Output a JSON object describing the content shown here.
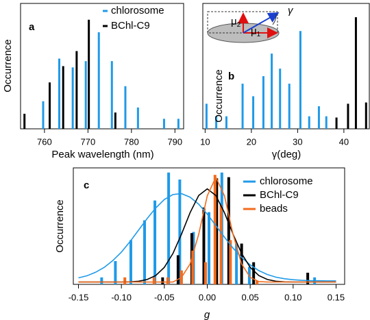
{
  "chart_data": [
    {
      "type": "bar",
      "panel_label": "a",
      "x_label": "Peak wavelength (nm)",
      "y_label": "Occurrence",
      "xlim": [
        754.5,
        792
      ],
      "xticks": [
        760,
        770,
        780,
        790
      ],
      "ylim": [
        0,
        10
      ],
      "legend": "upper right",
      "series": [
        {
          "name": "chlorosome",
          "color": "#1f9ae8",
          "x": [
            759.7,
            763.4,
            766.5,
            769.5,
            772.5,
            775.5,
            778.6,
            781.5,
            787.5,
            790.8
          ],
          "values": [
            2.2,
            5.6,
            4.9,
            5.4,
            7.7,
            5.4,
            3.4,
            1.7,
            0.8,
            0.8
          ]
        },
        {
          "name": "BChl-C9",
          "color": "#000000",
          "x": [
            755.4,
            761.2,
            764.3,
            767.4,
            770.2,
            776.3
          ],
          "values": [
            1.2,
            3.7,
            5.0,
            6.2,
            8.7,
            1.3
          ]
        }
      ]
    },
    {
      "type": "bar",
      "panel_label": "b",
      "x_label": "γ(deg)",
      "y_label": "Occurrence",
      "xlim": [
        9.5,
        45.5
      ],
      "xticks": [
        10,
        20,
        30,
        40
      ],
      "ylim": [
        0,
        10
      ],
      "inset_labels": [
        {
          "text": "μ",
          "sub": "2"
        },
        {
          "text": "μ",
          "sub": "1"
        },
        {
          "text": "γ"
        }
      ],
      "series": [
        {
          "color": "#1f9ae8",
          "x": [
            10.3,
            12.4,
            14.6,
            18.1,
            20.4,
            22.6,
            24.4,
            26.2,
            28.2,
            30.6,
            32.5,
            34.6,
            36.2
          ],
          "values": [
            2.0,
            1.0,
            1.0,
            3.6,
            2.6,
            4.2,
            6.0,
            4.8,
            3.6,
            7.8,
            1.0,
            1.8,
            1.0
          ]
        },
        {
          "color": "#000000",
          "x": [
            38.4,
            40.9,
            42.6,
            44.8
          ],
          "values": [
            0.9,
            2.0,
            8.9,
            2.1
          ]
        }
      ]
    },
    {
      "type": "bar",
      "panel_label": "c",
      "x_label": "g",
      "y_label": "Occurrence",
      "xlim": [
        -0.156,
        0.16
      ],
      "xticks": [
        -0.15,
        {
          "value": -0.1,
          "label": "-0.10"
        },
        -0.05,
        {
          "value": 0,
          "label": "0.00"
        },
        0.05,
        {
          "value": 0.1,
          "label": "0.10"
        },
        0.15
      ],
      "ylim": [
        0,
        10
      ],
      "legend": "upper right",
      "fit_x": [
        -0.15,
        -0.14,
        -0.13,
        -0.12,
        -0.11,
        -0.1,
        -0.09,
        -0.08,
        -0.07,
        -0.06,
        -0.05,
        -0.04,
        -0.03,
        -0.02,
        -0.01,
        0,
        0.01,
        0.02,
        0.03,
        0.04,
        0.05,
        0.06,
        0.07,
        0.08,
        0.09,
        0.1,
        0.11,
        0.12,
        0.13,
        0.14,
        0.15
      ],
      "series": [
        {
          "name": "chlorosome",
          "color": "#1f9ae8",
          "x": [
            -0.123,
            -0.107,
            -0.089,
            -0.073,
            -0.061,
            -0.045,
            -0.032,
            -0.016,
            0.002,
            0.017,
            0.034,
            0.049,
            0.125
          ],
          "values": [
            0.6,
            2.0,
            3.8,
            5.5,
            7.2,
            9.6,
            9.0,
            4.5,
            6.2,
            9.6,
            3.5,
            1.5,
            0.6
          ],
          "fit_values": [
            0.56,
            0.74,
            1.04,
            1.46,
            2.04,
            2.77,
            3.67,
            4.65,
            5.65,
            6.56,
            7.28,
            7.71,
            7.79,
            7.49,
            6.88,
            6.03,
            5.05,
            4.05,
            3.11,
            2.31,
            1.67,
            1.18,
            0.85,
            0.62,
            0.48,
            0.4,
            0.35,
            0.32,
            0.31,
            0.3,
            0.3
          ]
        },
        {
          "name": "BChl-C9",
          "color": "#000000",
          "x": [
            -0.052,
            -0.034,
            -0.018,
            -0.004,
            0.011,
            0.025,
            0.04,
            0.054,
            0.117
          ],
          "values": [
            0.6,
            2.5,
            4.4,
            6.6,
            9.1,
            9.2,
            3.5,
            1.9,
            1.0
          ],
          "fit_values": [
            0.2,
            0.2,
            0.2,
            0.2,
            0.2,
            0.2,
            0.22,
            0.27,
            0.42,
            0.76,
            1.46,
            2.65,
            4.31,
            6.15,
            7.63,
            8.2,
            7.63,
            6.15,
            4.31,
            2.65,
            1.46,
            0.76,
            0.42,
            0.27,
            0.22,
            0.2,
            0.2,
            0.2,
            0.2,
            0.2,
            0.2
          ]
        },
        {
          "name": "beads",
          "color": "#f26b1d",
          "x": [
            -0.096,
            -0.062,
            -0.046,
            -0.03,
            -0.017,
            -0.002,
            0.009,
            0.016,
            0.027,
            0.058
          ],
          "values": [
            0.6,
            0.6,
            0.6,
            1.2,
            2.9,
            1.9,
            9.4,
            6.8,
            3.8,
            0.3
          ],
          "fit_values": [
            0.2,
            0.2,
            0.2,
            0.2,
            0.2,
            0.2,
            0.2,
            0.2,
            0.2,
            0.2,
            0.2,
            0.2,
            0.6,
            1.75,
            4.3,
            7.6,
            9.2,
            7.6,
            4.3,
            1.75,
            0.6,
            0.24,
            0.2,
            0.2,
            0.2,
            0.2,
            0.2,
            0.2,
            0.2,
            0.2,
            0.2
          ]
        }
      ]
    }
  ]
}
